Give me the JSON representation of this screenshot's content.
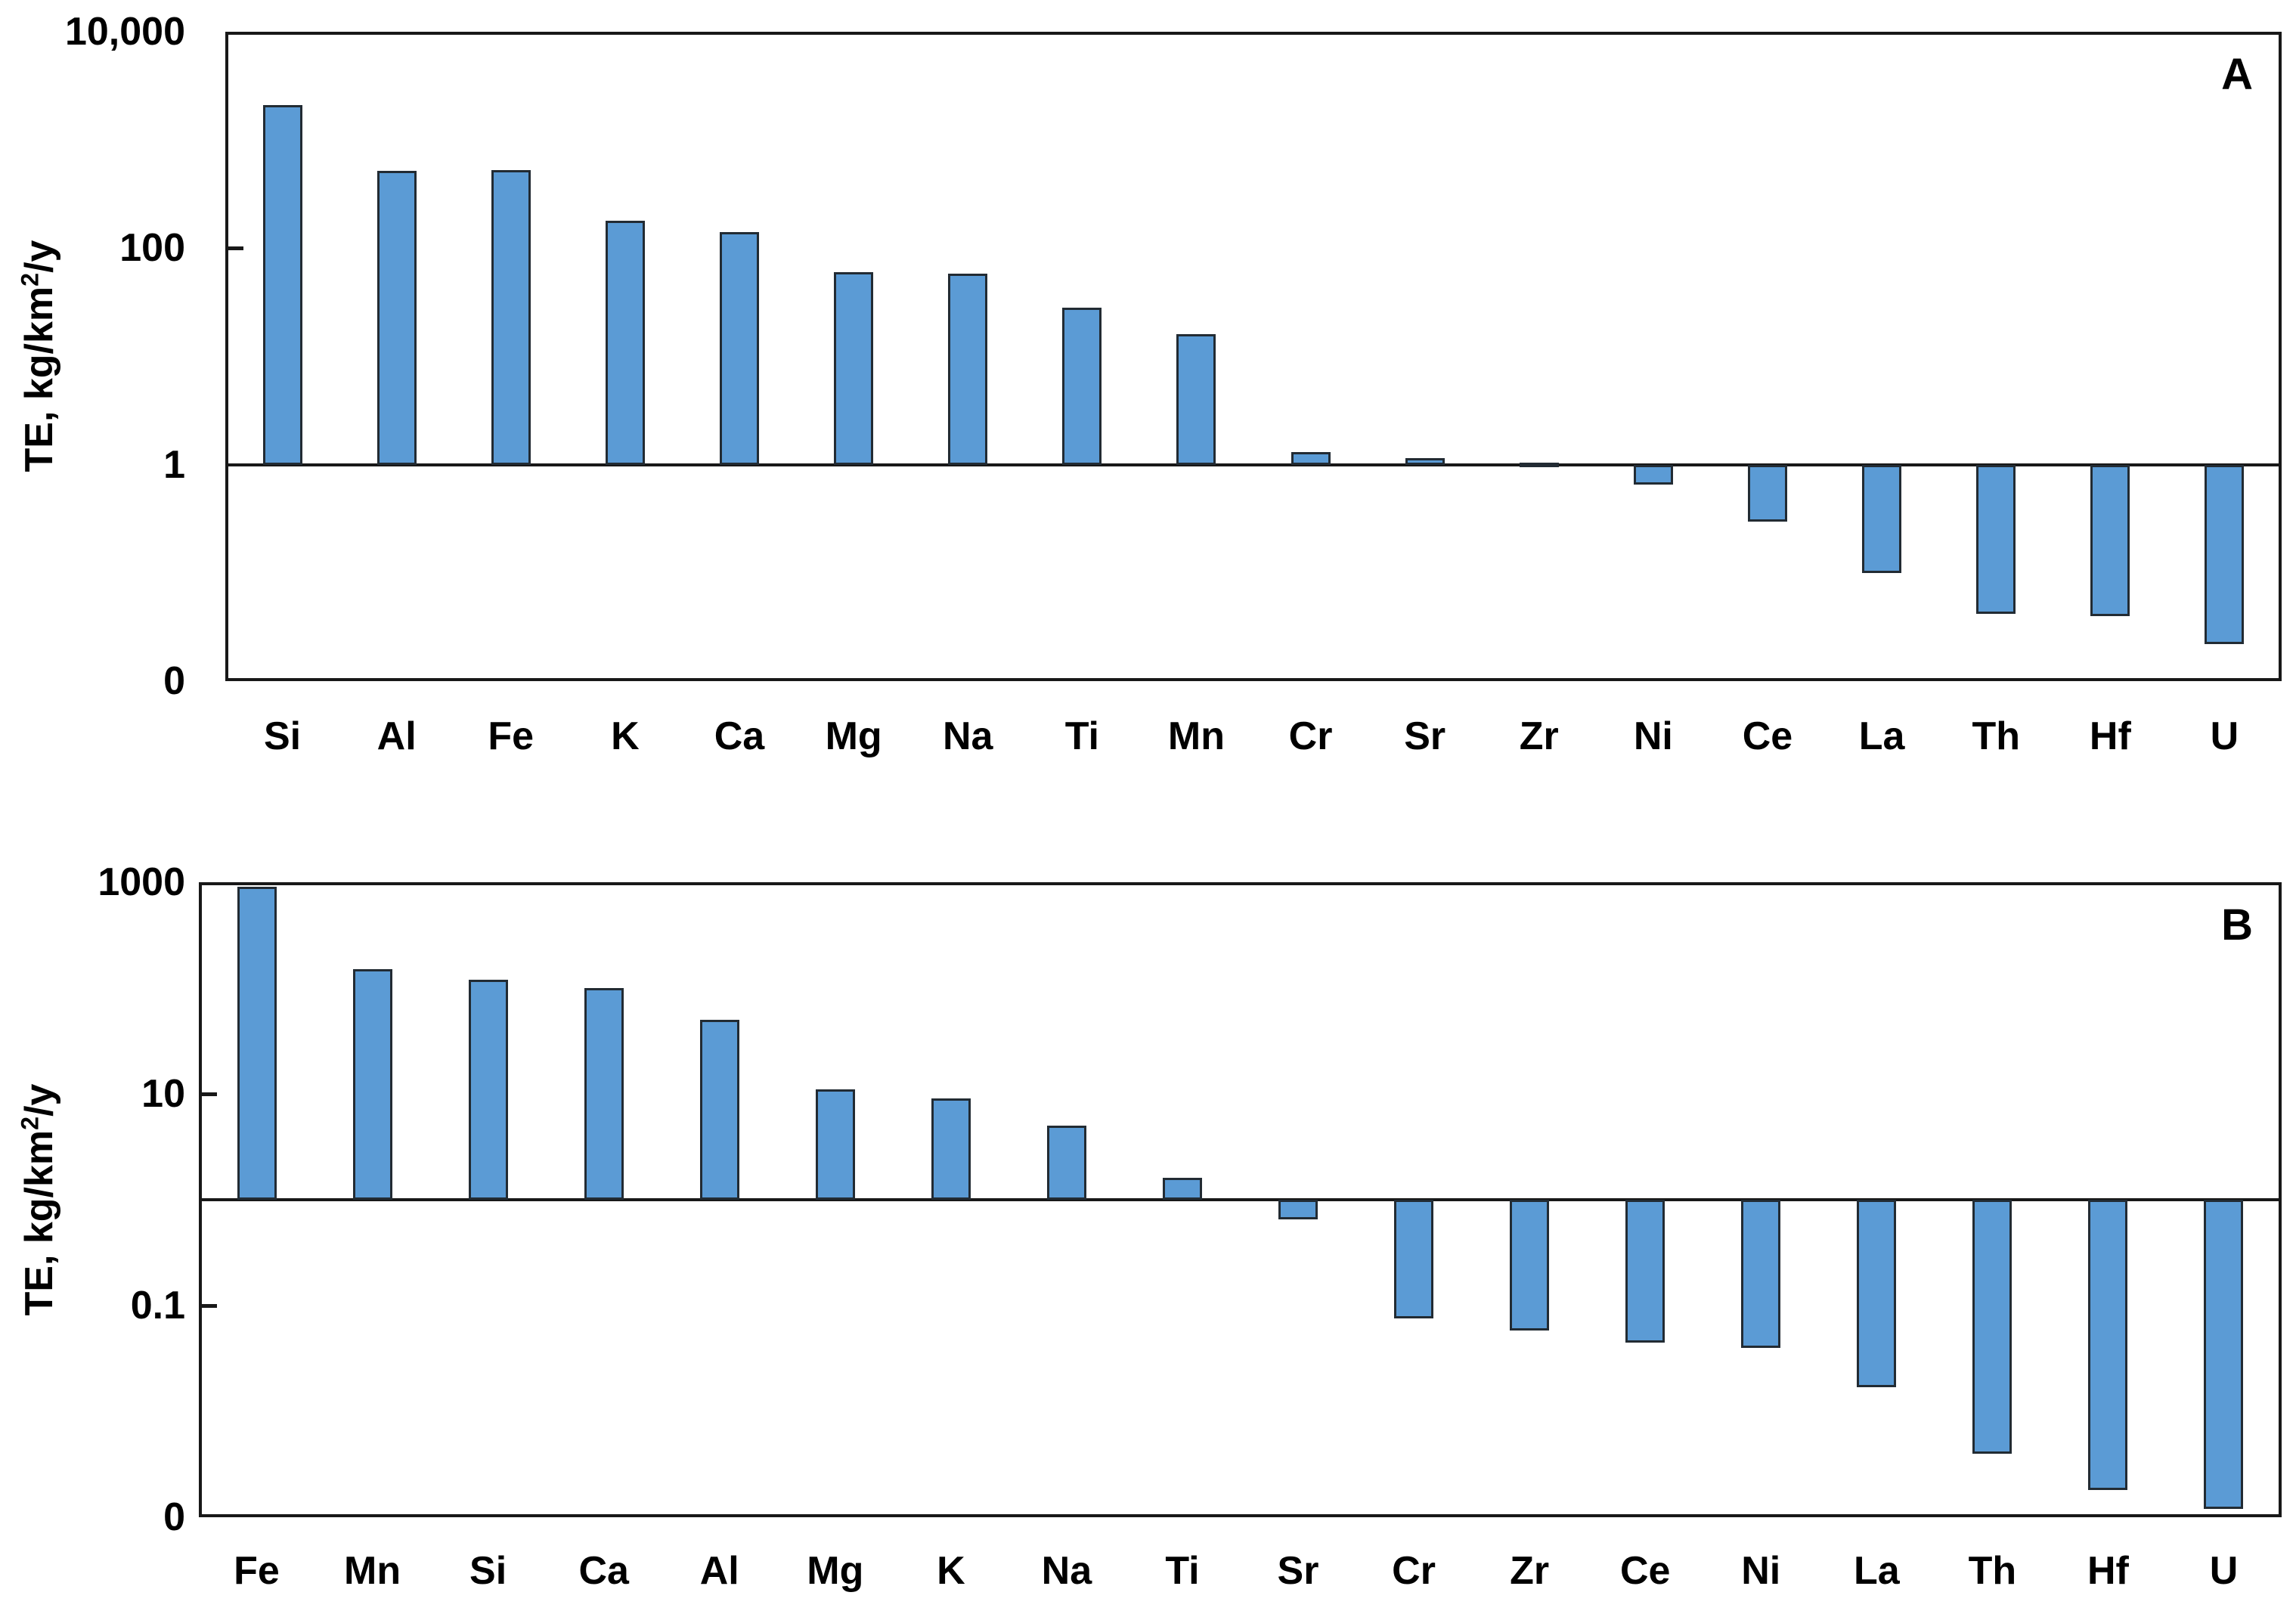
{
  "axis_title": {
    "prefix": "TE, kg/km",
    "sup": "2",
    "suffix": "/y"
  },
  "chart_data": [
    {
      "type": "bar",
      "panel_label": "A",
      "title": "",
      "xlabel": "",
      "ylabel": "TE, kg/km2/y",
      "yscale": "log",
      "ylim": [
        0.01,
        10000
      ],
      "baseline": 1,
      "grid": false,
      "legend": false,
      "bar_color": "#5B9BD5",
      "bar_border_color": "#222B33",
      "categories": [
        "Si",
        "Al",
        "Fe",
        "K",
        "Ca",
        "Mg",
        "Na",
        "Ti",
        "Mn",
        "Cr",
        "Sr",
        "Zr",
        "Ni",
        "Ce",
        "La",
        "Th",
        "Hf",
        "U"
      ],
      "values": [
        2100,
        520,
        530,
        180,
        140,
        60,
        58,
        28,
        16,
        1.3,
        1.15,
        1.05,
        0.65,
        0.3,
        0.1,
        0.042,
        0.04,
        0.022
      ],
      "yticks": [
        {
          "label": "10,000",
          "value": 10000
        },
        {
          "label": "100",
          "value": 100
        },
        {
          "label": "1",
          "value": 1
        },
        {
          "label": "0",
          "value": 0
        }
      ]
    },
    {
      "type": "bar",
      "panel_label": "B",
      "title": "",
      "xlabel": "",
      "ylabel": "TE, kg/km2/y",
      "yscale": "log",
      "ylim": [
        0.001,
        1000
      ],
      "baseline": 1,
      "grid": false,
      "legend": false,
      "bar_color": "#5B9BD5",
      "bar_border_color": "#222B33",
      "categories": [
        "Fe",
        "Mn",
        "Si",
        "Ca",
        "Al",
        "Mg",
        "K",
        "Na",
        "Ti",
        "Sr",
        "Cr",
        "Zr",
        "Ce",
        "Ni",
        "La",
        "Th",
        "Hf",
        "U"
      ],
      "values": [
        900,
        150,
        120,
        100,
        50,
        11,
        9,
        5,
        1.6,
        0.65,
        0.075,
        0.058,
        0.045,
        0.04,
        0.017,
        0.004,
        0.0018,
        0.0012
      ],
      "yticks": [
        {
          "label": "1000",
          "value": 1000
        },
        {
          "label": "10",
          "value": 10
        },
        {
          "label": "0.1",
          "value": 0.1
        },
        {
          "label": "0",
          "value": 0
        }
      ]
    }
  ]
}
